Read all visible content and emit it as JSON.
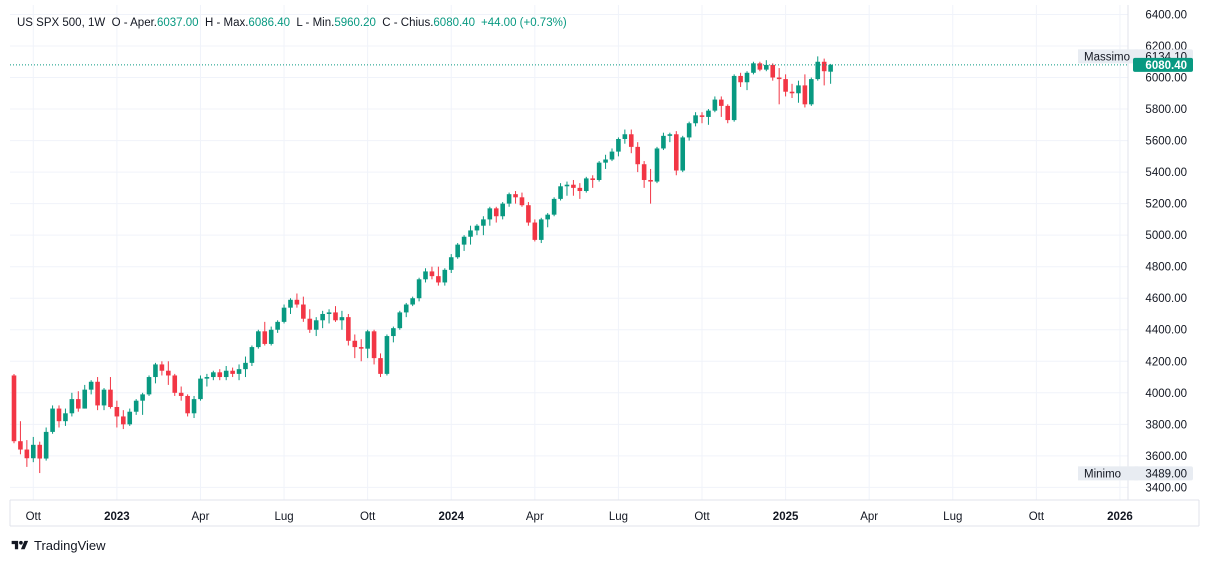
{
  "legend": {
    "symbol": "US SPX 500, 1W",
    "open_label": "O - Aper.",
    "open": "6037.00",
    "high_label": "H - Max.",
    "high": "6086.40",
    "low_label": "L - Min.",
    "low": "5960.20",
    "close_label": "C - Chius.",
    "close": "6080.40",
    "change": "+44.00 (+0.73%)"
  },
  "brand": {
    "name": "TradingView"
  },
  "colors": {
    "up": "#089981",
    "down": "#f23645",
    "grid": "#f0f3fa",
    "axis_text": "#131722"
  },
  "chart_data": {
    "type": "candlestick",
    "title": "US SPX 500, 1W",
    "interval": "1W",
    "ylim": [
      3320,
      6460
    ],
    "yticks": [
      3400,
      3600,
      3800,
      4000,
      4200,
      4400,
      4600,
      4800,
      5000,
      5200,
      5400,
      5600,
      5800,
      6000,
      6200,
      6400
    ],
    "ytick_labels": [
      "3400.00",
      "3600.00",
      "3800.00",
      "4000.00",
      "4200.00",
      "4400.00",
      "4600.00",
      "4800.00",
      "5000.00",
      "5200.00",
      "5400.00",
      "5600.00",
      "5800.00",
      "6000.00",
      "6200.00",
      "6400.00"
    ],
    "xticks": [
      {
        "label": "Ott",
        "week": 3,
        "bold": false
      },
      {
        "label": "2023",
        "week": 16,
        "bold": true
      },
      {
        "label": "Apr",
        "week": 29,
        "bold": false
      },
      {
        "label": "Lug",
        "week": 42,
        "bold": false
      },
      {
        "label": "Ott",
        "week": 55,
        "bold": false
      },
      {
        "label": "2024",
        "week": 68,
        "bold": true
      },
      {
        "label": "Apr",
        "week": 81,
        "bold": false
      },
      {
        "label": "Lug",
        "week": 94,
        "bold": false
      },
      {
        "label": "Ott",
        "week": 107,
        "bold": false
      },
      {
        "label": "2025",
        "week": 120,
        "bold": true
      },
      {
        "label": "Apr",
        "week": 133,
        "bold": false
      },
      {
        "label": "Lug",
        "week": 146,
        "bold": false
      },
      {
        "label": "Ott",
        "week": 159,
        "bold": false
      },
      {
        "label": "2026",
        "week": 172,
        "bold": true
      }
    ],
    "markers": {
      "max": {
        "label": "Massimo",
        "value": "6134.10",
        "y": 6134.1
      },
      "min": {
        "label": "Minimo",
        "value": "3489.00",
        "y": 3489.0
      },
      "last": {
        "value": "6080.40",
        "y": 6080.4
      }
    },
    "candles": [
      [
        4110,
        4119,
        3680,
        3693
      ],
      [
        3693,
        3820,
        3610,
        3640
      ],
      [
        3640,
        3700,
        3530,
        3585
      ],
      [
        3585,
        3720,
        3560,
        3670
      ],
      [
        3670,
        3690,
        3491,
        3583
      ],
      [
        3583,
        3780,
        3570,
        3752
      ],
      [
        3752,
        3920,
        3740,
        3900
      ],
      [
        3900,
        3920,
        3780,
        3820
      ],
      [
        3820,
        3900,
        3790,
        3870
      ],
      [
        3870,
        4000,
        3850,
        3960
      ],
      [
        3960,
        4010,
        3880,
        3900
      ],
      [
        3900,
        4050,
        3900,
        4020
      ],
      [
        4020,
        4080,
        3990,
        4070
      ],
      [
        4070,
        4100,
        3890,
        3920
      ],
      [
        3920,
        4030,
        3890,
        4020
      ],
      [
        4020,
        4100,
        3900,
        3910
      ],
      [
        3910,
        3950,
        3780,
        3850
      ],
      [
        3850,
        3890,
        3770,
        3800
      ],
      [
        3800,
        3900,
        3790,
        3880
      ],
      [
        3880,
        3960,
        3860,
        3950
      ],
      [
        3950,
        4000,
        3860,
        3990
      ],
      [
        3990,
        4110,
        3980,
        4100
      ],
      [
        4100,
        4190,
        4060,
        4180
      ],
      [
        4180,
        4200,
        4110,
        4140
      ],
      [
        4140,
        4200,
        4050,
        4110
      ],
      [
        4110,
        4120,
        3980,
        4000
      ],
      [
        4000,
        4040,
        3950,
        3980
      ],
      [
        3980,
        3990,
        3850,
        3870
      ],
      [
        3870,
        3980,
        3840,
        3960
      ],
      [
        3960,
        4110,
        3950,
        4090
      ],
      [
        4090,
        4120,
        4040,
        4100
      ],
      [
        4100,
        4140,
        4080,
        4130
      ],
      [
        4130,
        4150,
        4080,
        4100
      ],
      [
        4100,
        4170,
        4080,
        4140
      ],
      [
        4140,
        4160,
        4100,
        4120
      ],
      [
        4120,
        4180,
        4080,
        4150
      ],
      [
        4150,
        4230,
        4100,
        4190
      ],
      [
        4190,
        4300,
        4170,
        4290
      ],
      [
        4290,
        4400,
        4280,
        4390
      ],
      [
        4390,
        4450,
        4300,
        4310
      ],
      [
        4310,
        4420,
        4300,
        4400
      ],
      [
        4400,
        4460,
        4380,
        4450
      ],
      [
        4450,
        4560,
        4440,
        4540
      ],
      [
        4540,
        4600,
        4500,
        4590
      ],
      [
        4590,
        4630,
        4540,
        4560
      ],
      [
        4560,
        4610,
        4450,
        4470
      ],
      [
        4470,
        4530,
        4380,
        4400
      ],
      [
        4400,
        4480,
        4360,
        4460
      ],
      [
        4460,
        4520,
        4410,
        4500
      ],
      [
        4500,
        4530,
        4440,
        4510
      ],
      [
        4510,
        4550,
        4450,
        4460
      ],
      [
        4460,
        4520,
        4400,
        4480
      ],
      [
        4480,
        4500,
        4300,
        4330
      ],
      [
        4330,
        4370,
        4220,
        4290
      ],
      [
        4290,
        4340,
        4200,
        4280
      ],
      [
        4280,
        4400,
        4220,
        4390
      ],
      [
        4390,
        4400,
        4180,
        4220
      ],
      [
        4220,
        4250,
        4100,
        4120
      ],
      [
        4120,
        4370,
        4110,
        4360
      ],
      [
        4360,
        4420,
        4320,
        4410
      ],
      [
        4410,
        4520,
        4400,
        4510
      ],
      [
        4510,
        4570,
        4480,
        4560
      ],
      [
        4560,
        4610,
        4550,
        4600
      ],
      [
        4600,
        4730,
        4580,
        4720
      ],
      [
        4720,
        4790,
        4700,
        4770
      ],
      [
        4770,
        4800,
        4720,
        4740
      ],
      [
        4740,
        4800,
        4680,
        4700
      ],
      [
        4700,
        4790,
        4680,
        4780
      ],
      [
        4780,
        4880,
        4760,
        4860
      ],
      [
        4860,
        4950,
        4850,
        4940
      ],
      [
        4940,
        5000,
        4900,
        4990
      ],
      [
        4990,
        5060,
        4940,
        5030
      ],
      [
        5030,
        5070,
        5000,
        5060
      ],
      [
        5060,
        5120,
        5000,
        5100
      ],
      [
        5100,
        5180,
        5060,
        5170
      ],
      [
        5170,
        5180,
        5080,
        5120
      ],
      [
        5120,
        5210,
        5100,
        5200
      ],
      [
        5200,
        5270,
        5180,
        5260
      ],
      [
        5260,
        5280,
        5200,
        5240
      ],
      [
        5240,
        5270,
        5180,
        5190
      ],
      [
        5190,
        5210,
        5060,
        5080
      ],
      [
        5080,
        5100,
        4960,
        4970
      ],
      [
        4970,
        5110,
        4950,
        5100
      ],
      [
        5100,
        5140,
        5050,
        5130
      ],
      [
        5130,
        5240,
        5120,
        5230
      ],
      [
        5230,
        5330,
        5220,
        5310
      ],
      [
        5310,
        5340,
        5250,
        5320
      ],
      [
        5320,
        5350,
        5250,
        5300
      ],
      [
        5300,
        5330,
        5230,
        5280
      ],
      [
        5280,
        5370,
        5270,
        5360
      ],
      [
        5360,
        5380,
        5300,
        5350
      ],
      [
        5350,
        5470,
        5340,
        5460
      ],
      [
        5460,
        5510,
        5420,
        5480
      ],
      [
        5480,
        5550,
        5470,
        5530
      ],
      [
        5530,
        5620,
        5500,
        5610
      ],
      [
        5610,
        5670,
        5580,
        5640
      ],
      [
        5640,
        5670,
        5520,
        5560
      ],
      [
        5560,
        5590,
        5400,
        5450
      ],
      [
        5450,
        5470,
        5300,
        5350
      ],
      [
        5350,
        5420,
        5200,
        5340
      ],
      [
        5340,
        5560,
        5330,
        5550
      ],
      [
        5550,
        5650,
        5540,
        5630
      ],
      [
        5630,
        5650,
        5590,
        5640
      ],
      [
        5640,
        5660,
        5380,
        5410
      ],
      [
        5410,
        5630,
        5400,
        5620
      ],
      [
        5620,
        5720,
        5600,
        5710
      ],
      [
        5710,
        5780,
        5690,
        5760
      ],
      [
        5760,
        5780,
        5710,
        5750
      ],
      [
        5750,
        5800,
        5700,
        5790
      ],
      [
        5790,
        5880,
        5780,
        5860
      ],
      [
        5860,
        5880,
        5750,
        5820
      ],
      [
        5820,
        5830,
        5710,
        5730
      ],
      [
        5730,
        6020,
        5720,
        6010
      ],
      [
        6010,
        6030,
        5940,
        5970
      ],
      [
        5970,
        6040,
        5920,
        6030
      ],
      [
        6030,
        6100,
        6020,
        6090
      ],
      [
        6090,
        6100,
        6040,
        6050
      ],
      [
        6050,
        6110,
        6040,
        6080
      ],
      [
        6080,
        6090,
        5980,
        6000
      ],
      [
        6000,
        6060,
        5830,
        5990
      ],
      [
        5990,
        6020,
        5880,
        5910
      ],
      [
        5910,
        5960,
        5870,
        5900
      ],
      [
        5900,
        5980,
        5840,
        5950
      ],
      [
        5950,
        6020,
        5810,
        5830
      ],
      [
        5830,
        6000,
        5820,
        5990
      ],
      [
        5990,
        6134.1,
        5980,
        6100
      ],
      [
        6100,
        6120,
        5950,
        6040
      ],
      [
        6037,
        6086.4,
        5960.2,
        6080.4
      ]
    ]
  }
}
